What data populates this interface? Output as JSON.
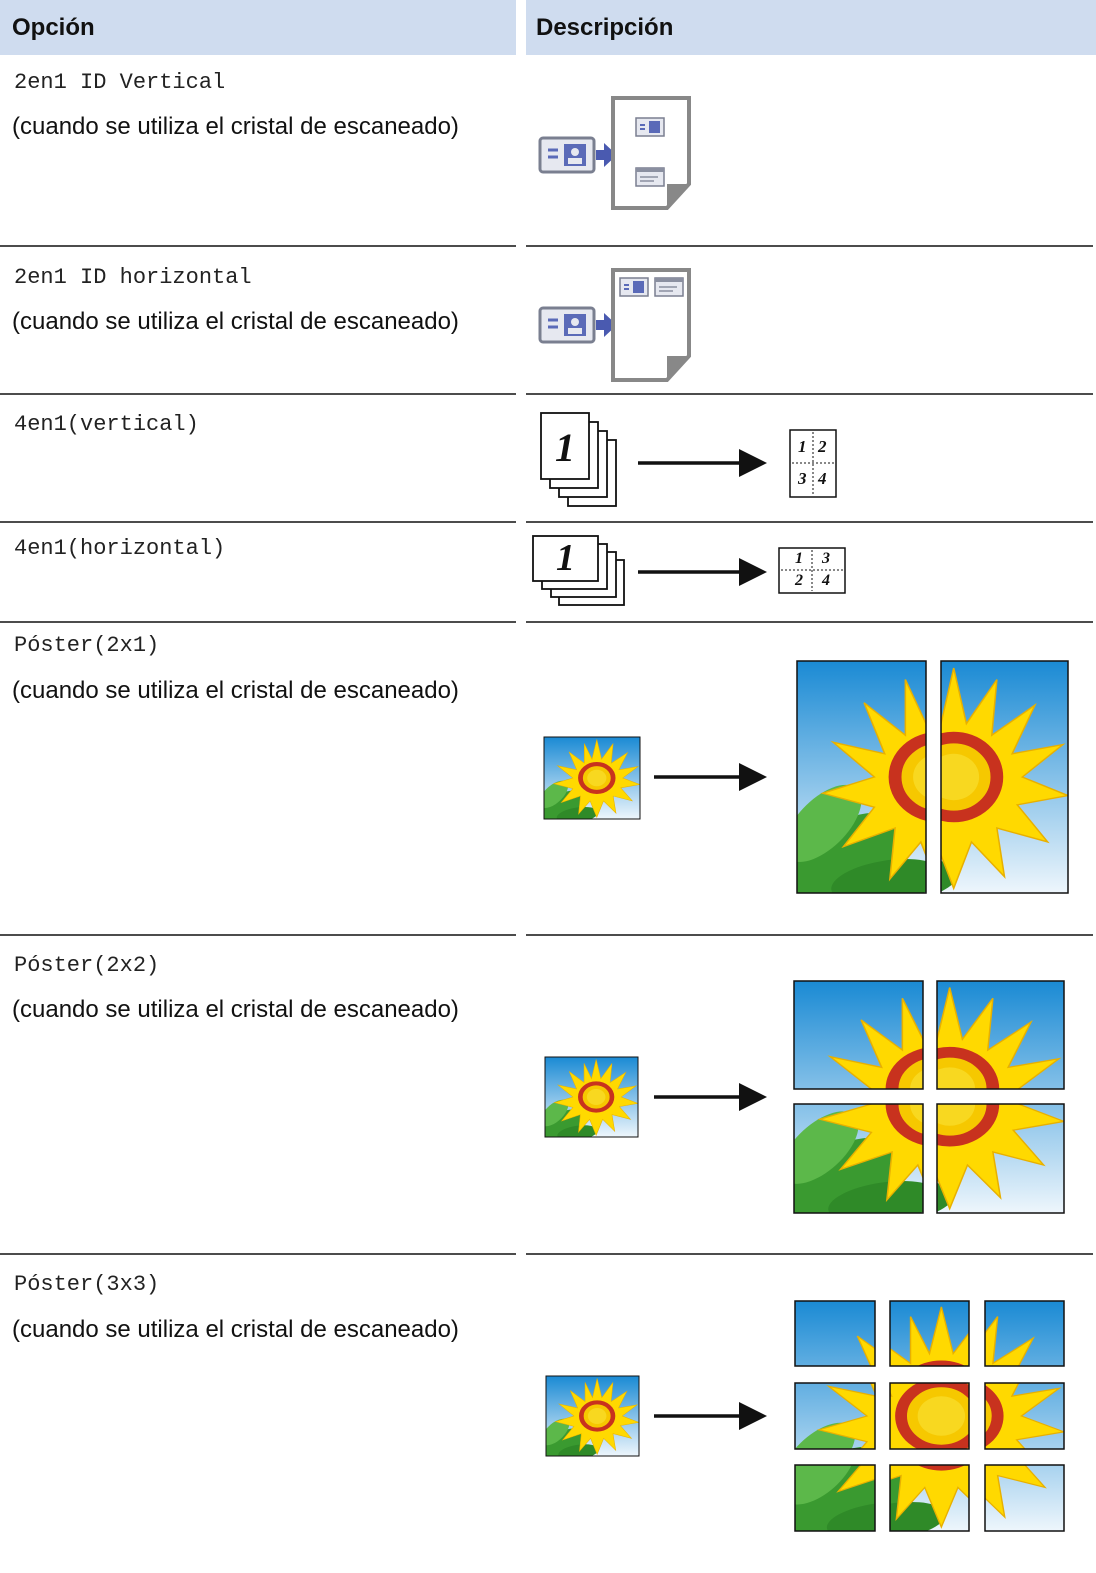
{
  "table": {
    "header": [
      "Opción",
      "Descripción"
    ],
    "rows": [
      {
        "option": "2en1 ID Vertical",
        "note": "(cuando se utiliza el cristal de escaneado)"
      },
      {
        "option": "2en1 ID horizontal",
        "note": "(cuando se utiliza el cristal de escaneado)"
      },
      {
        "option": "4en1(vertical)",
        "stack_label": "1",
        "page_labels": [
          "1",
          "2",
          "3",
          "4"
        ]
      },
      {
        "option": "4en1(horizontal)",
        "stack_label": "1",
        "page_labels": [
          "1",
          "3",
          "2",
          "4"
        ]
      },
      {
        "option": "Póster(2x1)",
        "note": "(cuando se utiliza el cristal de escaneado)"
      },
      {
        "option": "Póster(2x2)",
        "note": "(cuando se utiliza el cristal de escaneado)"
      },
      {
        "option": "Póster(3x3)",
        "note": "(cuando se utiliza el cristal de escaneado)"
      }
    ]
  }
}
